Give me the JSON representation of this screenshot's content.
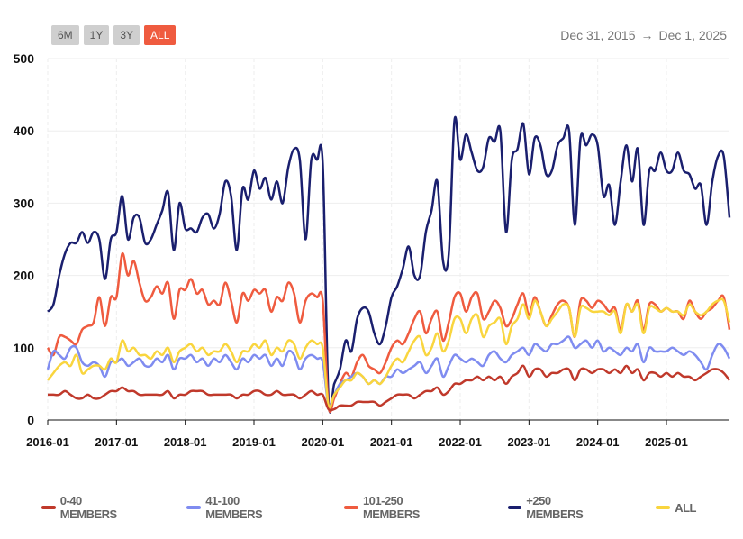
{
  "controls": {
    "buttons": [
      "6M",
      "1Y",
      "3Y",
      "ALL"
    ],
    "active": "ALL"
  },
  "date_range": {
    "start": "Dec 31, 2015",
    "arrow": "→",
    "end": "Dec 1, 2025"
  },
  "chart_data": {
    "type": "line",
    "x_start": "2016-01",
    "x_end": "2025-12",
    "x_interval": "monthly",
    "x_ticks": [
      "2016-01",
      "2017-01",
      "2018-01",
      "2019-01",
      "2020-01",
      "2021-01",
      "2022-01",
      "2023-01",
      "2024-01",
      "2025-01"
    ],
    "y_ticks": [
      0,
      100,
      200,
      300,
      400,
      500
    ],
    "ylim": [
      0,
      500
    ],
    "grid": true,
    "legend": "bottom",
    "series": [
      {
        "name": "0-40 MEMBERS",
        "color": "#c0392b",
        "values": [
          35,
          35,
          35,
          40,
          35,
          30,
          30,
          35,
          30,
          30,
          35,
          40,
          40,
          45,
          40,
          40,
          35,
          35,
          35,
          35,
          35,
          40,
          30,
          35,
          35,
          40,
          40,
          40,
          35,
          35,
          35,
          35,
          35,
          30,
          35,
          35,
          40,
          40,
          35,
          35,
          40,
          35,
          35,
          35,
          30,
          35,
          40,
          35,
          35,
          15,
          15,
          20,
          20,
          20,
          25,
          25,
          25,
          25,
          20,
          25,
          30,
          35,
          35,
          35,
          30,
          35,
          40,
          40,
          45,
          35,
          40,
          50,
          50,
          55,
          55,
          60,
          55,
          60,
          55,
          60,
          50,
          60,
          65,
          75,
          60,
          70,
          70,
          60,
          65,
          65,
          70,
          70,
          55,
          70,
          70,
          65,
          70,
          70,
          65,
          70,
          65,
          75,
          65,
          70,
          55,
          65,
          65,
          60,
          65,
          60,
          65,
          60,
          60,
          55,
          60,
          65,
          70,
          70,
          65,
          55
        ]
      },
      {
        "name": "41-100 MEMBERS",
        "color": "#7f8cf0",
        "values": [
          70,
          95,
          90,
          85,
          100,
          100,
          80,
          75,
          80,
          75,
          60,
          80,
          80,
          85,
          75,
          80,
          85,
          75,
          75,
          85,
          80,
          90,
          70,
          85,
          85,
          90,
          80,
          85,
          75,
          85,
          80,
          90,
          80,
          70,
          85,
          80,
          90,
          85,
          90,
          75,
          85,
          75,
          95,
          90,
          70,
          85,
          90,
          85,
          80,
          20,
          35,
          50,
          55,
          60,
          65,
          60,
          50,
          55,
          50,
          60,
          60,
          70,
          65,
          70,
          75,
          80,
          65,
          75,
          85,
          60,
          75,
          90,
          85,
          80,
          85,
          80,
          75,
          90,
          95,
          85,
          80,
          90,
          95,
          100,
          90,
          105,
          100,
          95,
          105,
          105,
          110,
          115,
          100,
          105,
          110,
          100,
          110,
          95,
          100,
          95,
          90,
          100,
          95,
          105,
          80,
          100,
          95,
          95,
          95,
          100,
          95,
          90,
          95,
          90,
          80,
          70,
          90,
          105,
          100,
          85
        ]
      },
      {
        "name": "101-250 MEMBERS",
        "color": "#ef5b3f",
        "values": [
          100,
          90,
          115,
          115,
          110,
          105,
          125,
          130,
          135,
          170,
          130,
          170,
          170,
          230,
          200,
          220,
          190,
          165,
          170,
          185,
          175,
          190,
          140,
          180,
          180,
          195,
          175,
          180,
          160,
          165,
          160,
          190,
          165,
          135,
          175,
          165,
          180,
          175,
          180,
          150,
          170,
          165,
          190,
          175,
          135,
          165,
          175,
          170,
          165,
          20,
          30,
          50,
          65,
          60,
          80,
          90,
          75,
          70,
          65,
          80,
          100,
          110,
          105,
          120,
          140,
          150,
          120,
          140,
          150,
          110,
          135,
          170,
          175,
          150,
          170,
          175,
          140,
          150,
          165,
          155,
          130,
          140,
          160,
          175,
          145,
          170,
          150,
          130,
          145,
          160,
          165,
          155,
          115,
          165,
          165,
          155,
          165,
          160,
          150,
          155,
          125,
          160,
          150,
          165,
          125,
          160,
          160,
          150,
          155,
          150,
          150,
          140,
          165,
          150,
          140,
          150,
          155,
          165,
          170,
          125
        ]
      },
      {
        "name": "+250 MEMBERS",
        "color": "#1a1f6e",
        "values": [
          150,
          160,
          200,
          230,
          245,
          245,
          260,
          245,
          260,
          250,
          195,
          250,
          260,
          310,
          250,
          280,
          280,
          245,
          250,
          270,
          290,
          315,
          235,
          300,
          265,
          265,
          260,
          280,
          285,
          265,
          285,
          330,
          310,
          235,
          320,
          305,
          345,
          320,
          335,
          305,
          330,
          300,
          350,
          375,
          360,
          250,
          360,
          360,
          355,
          30,
          50,
          70,
          110,
          95,
          140,
          155,
          150,
          120,
          105,
          130,
          170,
          185,
          210,
          240,
          200,
          200,
          260,
          290,
          330,
          220,
          230,
          415,
          360,
          395,
          370,
          345,
          350,
          390,
          385,
          400,
          260,
          360,
          375,
          410,
          340,
          390,
          380,
          340,
          345,
          380,
          390,
          400,
          270,
          390,
          380,
          395,
          380,
          310,
          325,
          270,
          330,
          380,
          330,
          375,
          270,
          345,
          345,
          370,
          345,
          345,
          370,
          345,
          340,
          320,
          325,
          270,
          330,
          365,
          365,
          280
        ]
      },
      {
        "name": "ALL",
        "color": "#f9d53e",
        "values": [
          55,
          65,
          75,
          80,
          75,
          90,
          65,
          70,
          75,
          75,
          70,
          85,
          80,
          110,
          95,
          100,
          90,
          90,
          85,
          95,
          90,
          100,
          80,
          95,
          100,
          105,
          95,
          100,
          90,
          95,
          95,
          105,
          95,
          80,
          95,
          95,
          105,
          100,
          110,
          90,
          100,
          95,
          110,
          105,
          85,
          100,
          110,
          105,
          100,
          20,
          35,
          45,
          55,
          55,
          65,
          60,
          50,
          55,
          50,
          60,
          75,
          85,
          80,
          95,
          110,
          115,
          90,
          100,
          120,
          95,
          110,
          140,
          140,
          120,
          140,
          145,
          115,
          130,
          135,
          140,
          105,
          130,
          140,
          160,
          140,
          165,
          150,
          130,
          140,
          150,
          160,
          155,
          115,
          155,
          155,
          150,
          150,
          150,
          145,
          150,
          120,
          160,
          150,
          160,
          120,
          155,
          155,
          150,
          155,
          150,
          150,
          145,
          160,
          150,
          145,
          150,
          160,
          165,
          165,
          135
        ]
      }
    ]
  }
}
